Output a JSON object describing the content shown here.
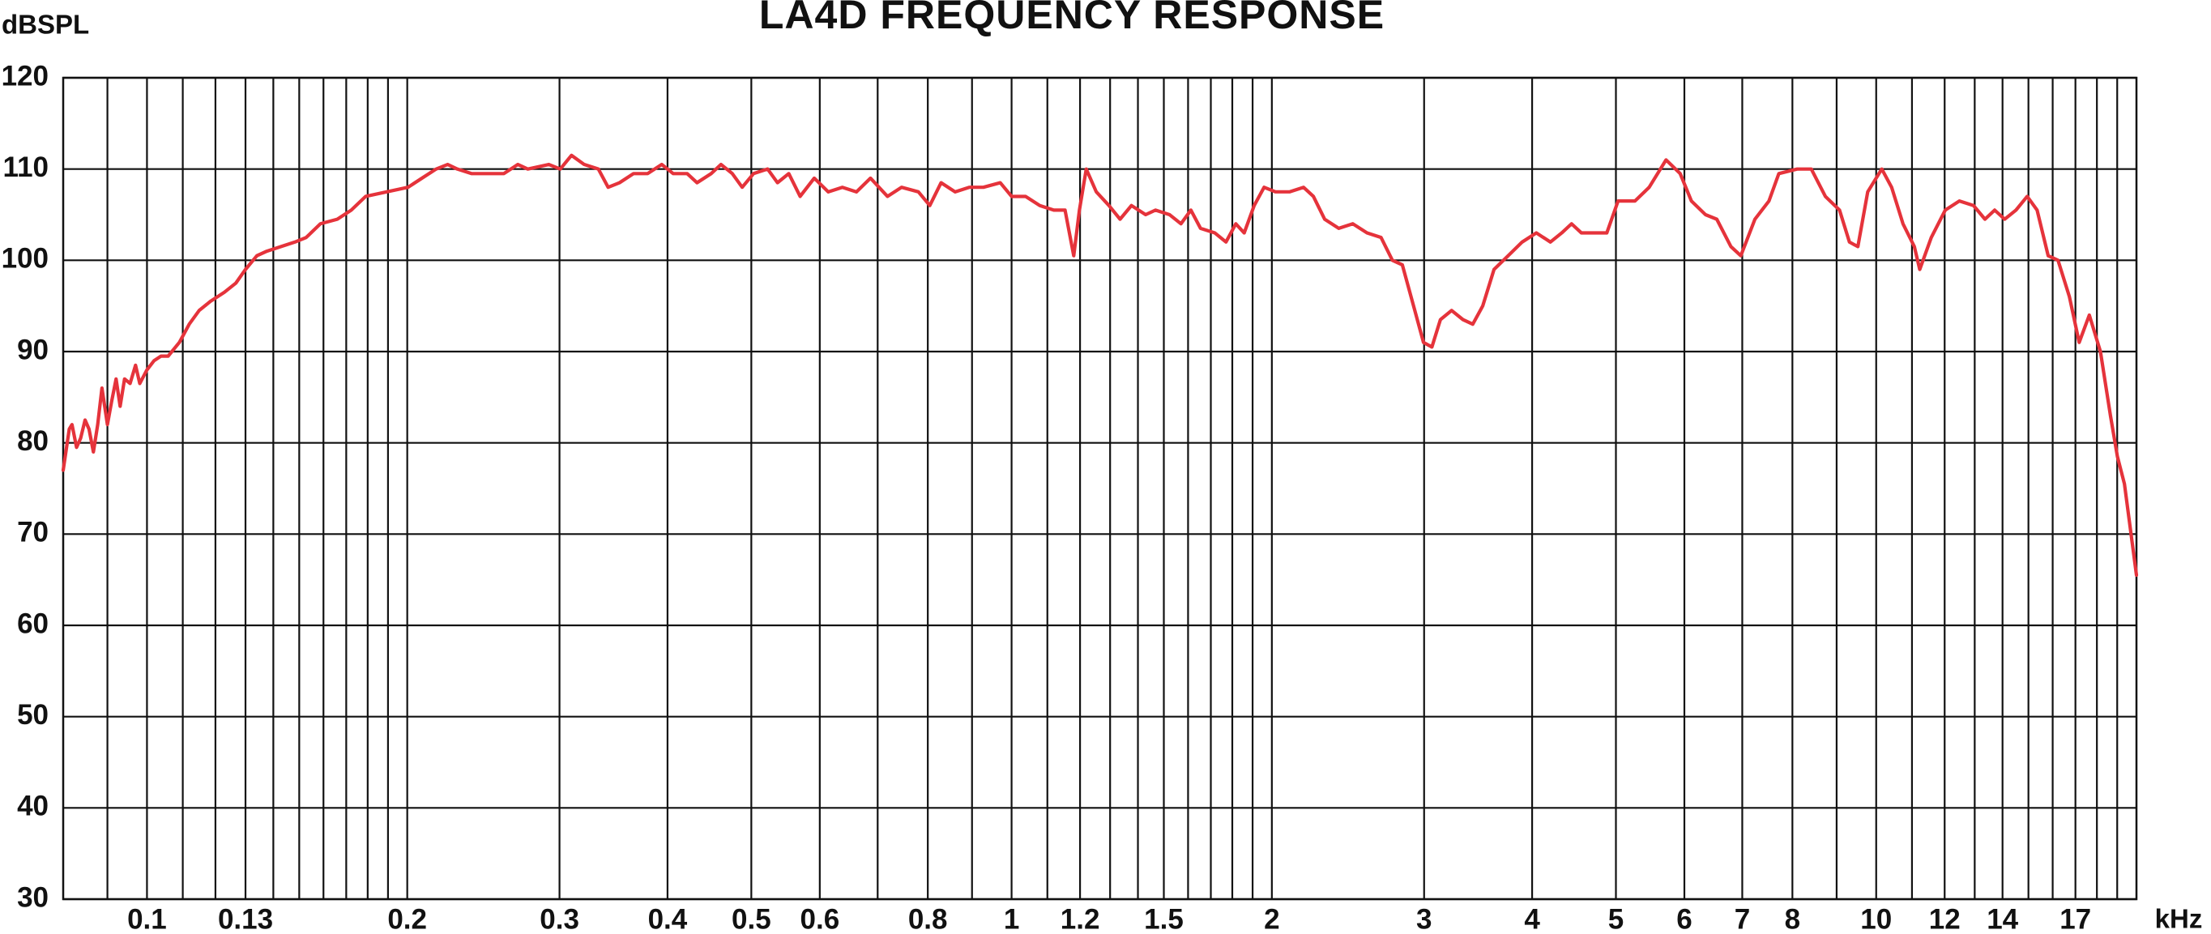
{
  "chart_data": {
    "type": "line",
    "title": "LA4D FREQUENCY RESPONSE",
    "ylabel": "dBSPL",
    "xlabel": "kHz",
    "xscale": "log",
    "grid": true,
    "color": "#e5333b",
    "xlim": [
      0.08,
      20
    ],
    "ylim": [
      30,
      120
    ],
    "yticks": [
      30,
      40,
      50,
      60,
      70,
      80,
      90,
      100,
      110,
      120
    ],
    "xticks": [
      0.1,
      0.13,
      0.2,
      0.3,
      0.4,
      0.5,
      0.6,
      0.8,
      1,
      1.2,
      1.5,
      2,
      3,
      4,
      5,
      6,
      7,
      8,
      10,
      12,
      14,
      17
    ],
    "xminor": [
      0.09,
      0.11,
      0.12,
      0.14,
      0.15,
      0.16,
      0.17,
      0.18,
      0.19,
      0.7,
      0.9,
      1.1,
      1.3,
      1.4,
      1.6,
      1.7,
      1.8,
      1.9,
      9,
      11,
      13,
      15,
      16,
      18,
      19
    ],
    "x": [
      0.08,
      0.0813,
      0.0819,
      0.0829,
      0.0838,
      0.0848,
      0.0857,
      0.0867,
      0.0877,
      0.0887,
      0.09,
      0.091,
      0.0921,
      0.0931,
      0.0942,
      0.0956,
      0.097,
      0.0981,
      0.1,
      0.1019,
      0.1038,
      0.1058,
      0.109,
      0.1119,
      0.1149,
      0.1184,
      0.1229,
      0.1267,
      0.13,
      0.134,
      0.1376,
      0.1429,
      0.1483,
      0.1528,
      0.1587,
      0.166,
      0.1723,
      0.179,
      0.1894,
      0.2004,
      0.208,
      0.216,
      0.2227,
      0.2285,
      0.2373,
      0.2464,
      0.2587,
      0.2685,
      0.2757,
      0.2916,
      0.3006,
      0.3097,
      0.3204,
      0.3327,
      0.3415,
      0.352,
      0.3654,
      0.3794,
      0.3939,
      0.406,
      0.4215,
      0.4327,
      0.4493,
      0.4612,
      0.4753,
      0.488,
      0.503,
      0.5222,
      0.5361,
      0.5525,
      0.5694,
      0.5912,
      0.6137,
      0.6372,
      0.6616,
      0.6868,
      0.7185,
      0.7459,
      0.7802,
      0.8043,
      0.8288,
      0.8604,
      0.8933,
      0.9277,
      0.9703,
      1,
      1.038,
      1.078,
      1.119,
      1.153,
      1.18,
      1.198,
      1.22,
      1.253,
      1.296,
      1.335,
      1.376,
      1.429,
      1.467,
      1.523,
      1.57,
      1.612,
      1.654,
      1.718,
      1.77,
      1.817,
      1.858,
      1.908,
      1.959,
      2.019,
      2.096,
      2.176,
      2.234,
      2.302,
      2.39,
      2.481,
      2.577,
      2.675,
      2.757,
      2.831,
      2.917,
      2.995,
      3.063,
      3.133,
      3.228,
      3.327,
      3.415,
      3.507,
      3.614,
      3.752,
      3.895,
      4.045,
      4.2,
      4.328,
      4.443,
      4.561,
      4.7,
      4.88,
      5.029,
      5.26,
      5.463,
      5.714,
      5.933,
      6.113,
      6.347,
      6.541,
      6.792,
      6.973,
      7.24,
      7.516,
      7.716,
      8.101,
      8.413,
      8.734,
      9.07,
      9.312,
      9.524,
      9.777,
      10.15,
      10.42,
      10.74,
      11.07,
      11.23,
      11.58,
      12.02,
      12.48,
      12.96,
      13.36,
      13.71,
      14.08,
      14.51,
      14.95,
      15.35,
      15.81,
      16.23,
      16.73,
      17.17,
      17.64,
      18.17,
      18.66,
      19.01,
      19.37,
      20
    ],
    "values": [
      77,
      81.5,
      82,
      79.5,
      80.5,
      82.5,
      81.5,
      79,
      82,
      86,
      82,
      84.5,
      87,
      84,
      87,
      86.5,
      88.5,
      86.5,
      88,
      89,
      89.5,
      89.5,
      91,
      93,
      94.5,
      95.5,
      96.5,
      97.5,
      99,
      100.5,
      101,
      101.5,
      102,
      102.5,
      104,
      104.5,
      105.5,
      107,
      107.5,
      108,
      109,
      110,
      110.5,
      110,
      109.5,
      109.5,
      109.5,
      110.5,
      110,
      110.5,
      110,
      111.5,
      110.5,
      110,
      108,
      108.5,
      109.5,
      109.5,
      110.5,
      109.5,
      109.5,
      108.5,
      109.5,
      110.5,
      109.5,
      108,
      109.5,
      110,
      108.5,
      109.5,
      107,
      109,
      107.5,
      108,
      107.5,
      109,
      107,
      108,
      107.5,
      106,
      108.5,
      107.5,
      108,
      108,
      108.5,
      107,
      107,
      106,
      105.5,
      105.5,
      100.5,
      105.5,
      110,
      107.5,
      106,
      104.5,
      106,
      105,
      105.5,
      105,
      104,
      105.5,
      103.5,
      103,
      102,
      104,
      103,
      106,
      108,
      107.5,
      107.5,
      108,
      107,
      104.5,
      103.5,
      104,
      103,
      102.5,
      100,
      99.5,
      95,
      91,
      90.5,
      93.5,
      94.5,
      93.5,
      93,
      95,
      99,
      100.5,
      102,
      103,
      102,
      103,
      104,
      103,
      103,
      103,
      106.5,
      106.5,
      108,
      111,
      109.5,
      106.5,
      105,
      104.5,
      101.5,
      100.5,
      104.5,
      106.5,
      109.5,
      110,
      110,
      107,
      105.5,
      102,
      101.5,
      107.5,
      110,
      108,
      104,
      101.5,
      99,
      102.5,
      105.5,
      106.5,
      106,
      104.5,
      105.5,
      104.5,
      105.5,
      107,
      105.5,
      100.5,
      100,
      96,
      91,
      94,
      90,
      83,
      78.5,
      75.5,
      65.5
    ]
  }
}
